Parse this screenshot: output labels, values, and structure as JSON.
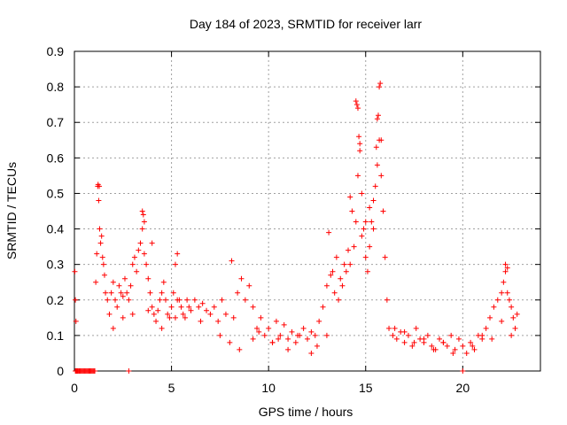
{
  "chart_data": {
    "type": "scatter",
    "title": "Day 184 of 2023, SRMTID for receiver larr",
    "xlabel": "GPS time / hours",
    "ylabel": "SRMTID / TECUs",
    "xlim": [
      0,
      24
    ],
    "ylim": [
      0,
      0.9
    ],
    "xticks": [
      0,
      5,
      10,
      15,
      20
    ],
    "xtick_labels": [
      "0",
      "5",
      "10",
      "15",
      "20"
    ],
    "yticks": [
      0,
      0.1,
      0.2,
      0.3,
      0.4,
      0.5,
      0.6,
      0.7,
      0.8,
      0.9
    ],
    "ytick_labels": [
      "0",
      "0.1",
      "0.2",
      "0.3",
      "0.4",
      "0.5",
      "0.6",
      "0.7",
      "0.8",
      "0.9"
    ],
    "grid": true,
    "legend": "none",
    "marker": "+",
    "color": "#ff0000",
    "series": [
      {
        "name": "SRMTID",
        "x": [
          0.02,
          0.05,
          0.08,
          0.1,
          0.15,
          0.2,
          0.3,
          0.4,
          0.5,
          0.6,
          0.7,
          0.8,
          0.9,
          1.0,
          1.05,
          1.1,
          1.15,
          1.2,
          1.25,
          1.3,
          1.35,
          1.4,
          1.45,
          1.5,
          1.55,
          1.6,
          1.7,
          1.8,
          1.9,
          2.0,
          2.1,
          2.2,
          2.3,
          2.4,
          2.5,
          2.6,
          2.7,
          2.8,
          2.9,
          3.0,
          3.1,
          3.2,
          3.3,
          3.4,
          3.5,
          3.6,
          3.7,
          3.8,
          3.9,
          4.0,
          4.1,
          4.2,
          4.3,
          4.4,
          4.5,
          4.6,
          4.7,
          4.8,
          4.9,
          5.0,
          5.1,
          5.2,
          5.3,
          5.4,
          5.5,
          5.6,
          5.7,
          5.8,
          5.9,
          6.0,
          6.2,
          6.4,
          6.6,
          6.8,
          7.0,
          7.2,
          7.4,
          7.6,
          7.8,
          8.0,
          8.2,
          8.4,
          8.6,
          8.8,
          9.0,
          9.2,
          9.4,
          9.6,
          9.8,
          10.0,
          10.2,
          10.4,
          10.6,
          10.8,
          11.0,
          11.2,
          11.4,
          11.6,
          11.8,
          12.0,
          12.2,
          12.4,
          12.6,
          12.8,
          13.0,
          13.2,
          13.4,
          13.6,
          13.8,
          14.0,
          14.2,
          14.4,
          14.5,
          14.6,
          14.7,
          14.8,
          14.9,
          15.0,
          15.1,
          15.2,
          15.3,
          15.4,
          15.5,
          15.6,
          15.7,
          15.8,
          15.9,
          16.0,
          16.1,
          16.2,
          16.4,
          16.6,
          16.8,
          17.0,
          17.2,
          17.4,
          17.6,
          17.8,
          18.0,
          18.2,
          18.4,
          18.6,
          18.8,
          19.0,
          19.2,
          19.4,
          19.6,
          19.8,
          20.0,
          20.2,
          20.4,
          20.6,
          20.8,
          21.0,
          21.2,
          21.4,
          21.6,
          21.8,
          22.0,
          22.1,
          22.2,
          22.3,
          22.4,
          22.5,
          22.6,
          22.7,
          22.8,
          0.05,
          0.08,
          0.12,
          0.18,
          0.25,
          0.35,
          0.45,
          0.55,
          0.65,
          0.75,
          0.85,
          0.95,
          1.05,
          2.8,
          20.0,
          1.22,
          1.28,
          3.5,
          3.55,
          3.6,
          4.0,
          8.1,
          13.1,
          14.5,
          14.55,
          14.6,
          14.65,
          14.7,
          15.55,
          15.6,
          15.65,
          15.7,
          15.75,
          15.8,
          14.3,
          14.2,
          22.2,
          22.3,
          13.3,
          13.5,
          13.7,
          13.9,
          14.1,
          14.8,
          15.0,
          15.2,
          15.4,
          2.0,
          2.5,
          3.0,
          3.8,
          4.5,
          6.5,
          7.5,
          9.5,
          10.5,
          11.5,
          12.5,
          17.5,
          18.5,
          19.5,
          20.5,
          21.5,
          22.5,
          16.5,
          17.0,
          18.0,
          19.0,
          21.0,
          22.0,
          5.2,
          5.3,
          8.5,
          9.2,
          10.2,
          11.0,
          12.2,
          13.0
        ],
        "y": [
          0.28,
          0.2,
          0.14,
          0.0,
          0.0,
          0.0,
          0.0,
          0.0,
          0.0,
          0.0,
          0.0,
          0.0,
          0.0,
          0.0,
          0.0,
          0.25,
          0.33,
          0.52,
          0.48,
          0.4,
          0.36,
          0.38,
          0.32,
          0.3,
          0.27,
          0.22,
          0.2,
          0.16,
          0.22,
          0.25,
          0.2,
          0.18,
          0.24,
          0.22,
          0.21,
          0.26,
          0.22,
          0.2,
          0.24,
          0.3,
          0.32,
          0.28,
          0.34,
          0.36,
          0.4,
          0.33,
          0.3,
          0.26,
          0.22,
          0.18,
          0.16,
          0.14,
          0.17,
          0.2,
          0.22,
          0.25,
          0.2,
          0.16,
          0.15,
          0.18,
          0.22,
          0.3,
          0.33,
          0.2,
          0.18,
          0.16,
          0.15,
          0.2,
          0.18,
          0.17,
          0.2,
          0.18,
          0.19,
          0.17,
          0.16,
          0.18,
          0.14,
          0.2,
          0.16,
          0.08,
          0.15,
          0.22,
          0.26,
          0.2,
          0.24,
          0.18,
          0.12,
          0.15,
          0.1,
          0.12,
          0.08,
          0.14,
          0.1,
          0.13,
          0.09,
          0.11,
          0.08,
          0.1,
          0.12,
          0.09,
          0.11,
          0.1,
          0.14,
          0.18,
          0.24,
          0.27,
          0.22,
          0.2,
          0.24,
          0.28,
          0.3,
          0.35,
          0.42,
          0.55,
          0.62,
          0.5,
          0.4,
          0.32,
          0.28,
          0.35,
          0.42,
          0.48,
          0.52,
          0.58,
          0.65,
          0.55,
          0.45,
          0.32,
          0.2,
          0.12,
          0.1,
          0.09,
          0.11,
          0.08,
          0.1,
          0.07,
          0.12,
          0.09,
          0.08,
          0.1,
          0.07,
          0.06,
          0.09,
          0.08,
          0.07,
          0.1,
          0.06,
          0.09,
          0.07,
          0.05,
          0.08,
          0.06,
          0.1,
          0.09,
          0.12,
          0.15,
          0.18,
          0.2,
          0.22,
          0.25,
          0.28,
          0.22,
          0.2,
          0.18,
          0.15,
          0.12,
          0.16,
          0.0,
          0.0,
          0.0,
          0.0,
          0.0,
          0.0,
          0.0,
          0.0,
          0.0,
          0.0,
          0.0,
          0.0,
          0.0,
          0.0,
          0.0,
          0.525,
          0.52,
          0.45,
          0.44,
          0.42,
          0.36,
          0.31,
          0.39,
          0.76,
          0.75,
          0.74,
          0.66,
          0.64,
          0.63,
          0.71,
          0.72,
          0.8,
          0.81,
          0.65,
          0.45,
          0.49,
          0.3,
          0.29,
          0.28,
          0.32,
          0.26,
          0.3,
          0.34,
          0.38,
          0.42,
          0.46,
          0.4,
          0.12,
          0.15,
          0.16,
          0.17,
          0.12,
          0.14,
          0.1,
          0.11,
          0.09,
          0.1,
          0.07,
          0.08,
          0.06,
          0.05,
          0.07,
          0.09,
          0.1,
          0.12,
          0.11,
          0.09,
          0.08,
          0.1,
          0.14,
          0.15,
          0.2,
          0.06,
          0.09,
          0.08,
          0.06,
          0.05,
          0.1
        ]
      }
    ]
  }
}
